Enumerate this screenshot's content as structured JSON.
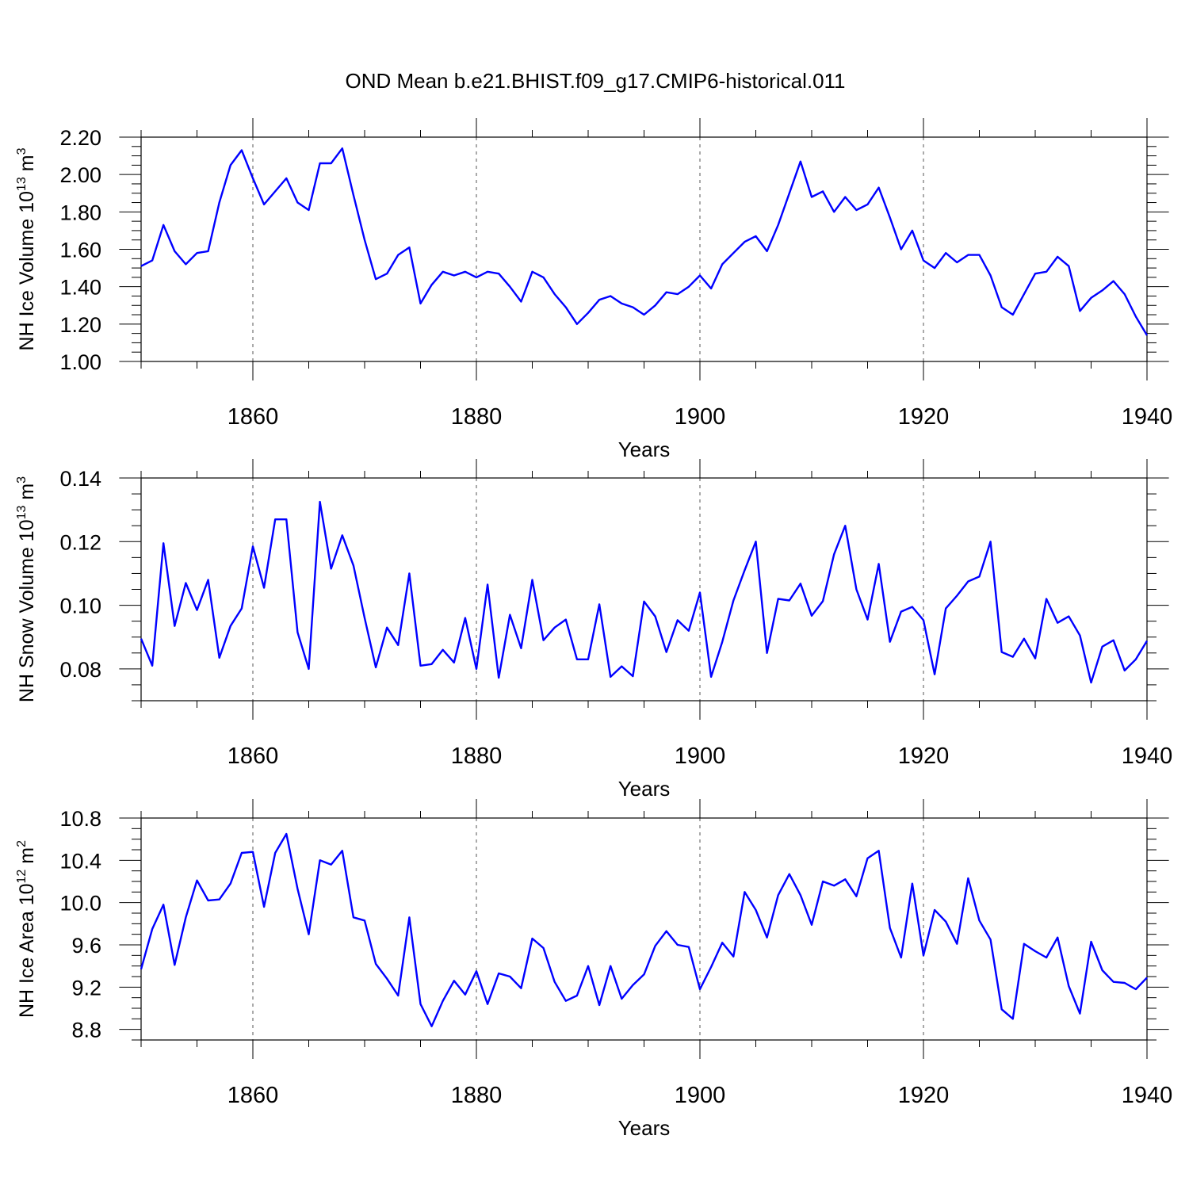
{
  "figure_title": "OND Mean b.e21.BHIST.f09_g17.CMIP6-historical.011",
  "colors": {
    "series": "#0000ff",
    "axes": "#000000",
    "grid": "#555555"
  },
  "chart_data": [
    {
      "type": "line",
      "title": "OND Mean b.e21.BHIST.f09_g17.CMIP6-historical.011",
      "xlabel": "Years",
      "ylabel": {
        "main": "NH Ice Volume 10",
        "exp": "13",
        "unit": " m",
        "unit_exp": "3"
      },
      "xlim": [
        1850,
        1940
      ],
      "ylim": [
        1.0,
        2.2
      ],
      "yticks": [
        1.0,
        1.2,
        1.4,
        1.6,
        1.8,
        2.0,
        2.2
      ],
      "ytick_labels": [
        "1.00",
        "1.20",
        "1.40",
        "1.60",
        "1.80",
        "2.00",
        "2.20"
      ],
      "yminor_step": 0.05,
      "xticks": [
        1860,
        1880,
        1900,
        1920,
        1940
      ],
      "xtick_labels": [
        "1860",
        "1880",
        "1900",
        "1920",
        "1940"
      ],
      "xminor_step": 5,
      "grid_x": [
        1860,
        1880,
        1900,
        1920
      ],
      "x_start": 1850,
      "values": [
        1.51,
        1.54,
        1.73,
        1.59,
        1.52,
        1.58,
        1.59,
        1.85,
        2.05,
        2.13,
        1.98,
        1.84,
        1.91,
        1.98,
        1.85,
        1.81,
        2.06,
        2.06,
        2.14,
        1.89,
        1.65,
        1.44,
        1.47,
        1.57,
        1.61,
        1.31,
        1.41,
        1.48,
        1.46,
        1.48,
        1.45,
        1.48,
        1.47,
        1.4,
        1.32,
        1.48,
        1.45,
        1.36,
        1.29,
        1.2,
        1.26,
        1.33,
        1.35,
        1.31,
        1.29,
        1.25,
        1.3,
        1.37,
        1.36,
        1.4,
        1.46,
        1.39,
        1.52,
        1.58,
        1.64,
        1.67,
        1.59,
        1.73,
        1.9,
        2.07,
        1.88,
        1.91,
        1.8,
        1.88,
        1.81,
        1.84,
        1.93,
        1.77,
        1.6,
        1.7,
        1.54,
        1.5,
        1.58,
        1.53,
        1.57,
        1.57,
        1.46,
        1.29,
        1.25,
        1.36,
        1.47,
        1.48,
        1.56,
        1.51,
        1.27,
        1.34,
        1.38,
        1.43,
        1.36,
        1.24,
        1.14
      ]
    },
    {
      "type": "line",
      "xlabel": "Years",
      "ylabel": {
        "main": "NH Snow Volume 10",
        "exp": "13",
        "unit": " m",
        "unit_exp": "3"
      },
      "xlim": [
        1850,
        1940
      ],
      "ylim": [
        0.07,
        0.14
      ],
      "yticks": [
        0.08,
        0.1,
        0.12,
        0.14
      ],
      "ytick_labels": [
        "0.08",
        "0.10",
        "0.12",
        "0.14"
      ],
      "yminor_step": 0.005,
      "xticks": [
        1860,
        1880,
        1900,
        1920,
        1940
      ],
      "xtick_labels": [
        "1860",
        "1880",
        "1900",
        "1920",
        "1940"
      ],
      "xminor_step": 5,
      "grid_x": [
        1860,
        1880,
        1900,
        1920
      ],
      "x_start": 1850,
      "values": [
        0.0895,
        0.081,
        0.1195,
        0.0935,
        0.107,
        0.0985,
        0.108,
        0.0835,
        0.0935,
        0.099,
        0.1185,
        0.1055,
        0.127,
        0.127,
        0.0915,
        0.08,
        0.1325,
        0.1115,
        0.122,
        0.1125,
        0.096,
        0.0805,
        0.093,
        0.0875,
        0.11,
        0.081,
        0.0815,
        0.086,
        0.082,
        0.096,
        0.08,
        0.1065,
        0.0772,
        0.097,
        0.0865,
        0.108,
        0.089,
        0.093,
        0.0955,
        0.083,
        0.083,
        0.1003,
        0.0775,
        0.0808,
        0.0777,
        0.1012,
        0.0965,
        0.0853,
        0.0953,
        0.092,
        0.104,
        0.0775,
        0.0885,
        0.1015,
        0.111,
        0.12,
        0.085,
        0.102,
        0.1015,
        0.1068,
        0.0967,
        0.1013,
        0.116,
        0.125,
        0.105,
        0.0955,
        0.113,
        0.0885,
        0.098,
        0.0995,
        0.0953,
        0.0783,
        0.099,
        0.103,
        0.1075,
        0.109,
        0.12,
        0.0853,
        0.0838,
        0.0895,
        0.0833,
        0.102,
        0.0945,
        0.0965,
        0.0905,
        0.0757,
        0.087,
        0.089,
        0.0795,
        0.083,
        0.0888
      ]
    },
    {
      "type": "line",
      "xlabel": "Years",
      "ylabel": {
        "main": "NH Ice Area 10",
        "exp": "12",
        "unit": " m",
        "unit_exp": "2"
      },
      "xlim": [
        1850,
        1940
      ],
      "ylim": [
        8.7,
        10.8
      ],
      "yticks": [
        8.8,
        9.2,
        9.6,
        10.0,
        10.4,
        10.8
      ],
      "ytick_labels": [
        "8.8",
        "9.2",
        "9.6",
        "10.0",
        "10.4",
        "10.8"
      ],
      "yminor_step": 0.1,
      "xticks": [
        1860,
        1880,
        1900,
        1920,
        1940
      ],
      "xtick_labels": [
        "1860",
        "1880",
        "1900",
        "1920",
        "1940"
      ],
      "xminor_step": 5,
      "grid_x": [
        1860,
        1880,
        1900,
        1920
      ],
      "x_start": 1850,
      "values": [
        9.37,
        9.75,
        9.98,
        9.41,
        9.86,
        10.21,
        10.02,
        10.03,
        10.18,
        10.47,
        10.48,
        9.96,
        10.47,
        10.65,
        10.13,
        9.7,
        10.4,
        10.36,
        10.49,
        9.86,
        9.83,
        9.42,
        9.28,
        9.12,
        9.86,
        9.04,
        8.83,
        9.07,
        9.26,
        9.13,
        9.35,
        9.04,
        9.33,
        9.3,
        9.19,
        9.66,
        9.57,
        9.25,
        9.07,
        9.12,
        9.4,
        9.03,
        9.4,
        9.09,
        9.22,
        9.32,
        9.59,
        9.73,
        9.6,
        9.58,
        9.18,
        9.39,
        9.62,
        9.49,
        10.1,
        9.93,
        9.67,
        10.07,
        10.27,
        10.07,
        9.79,
        10.2,
        10.16,
        10.22,
        10.06,
        10.42,
        10.49,
        9.76,
        9.48,
        10.18,
        9.5,
        9.93,
        9.82,
        9.61,
        10.23,
        9.83,
        9.65,
        8.99,
        8.9,
        9.61,
        9.54,
        9.48,
        9.67,
        9.21,
        8.95,
        9.63,
        9.36,
        9.25,
        9.24,
        9.18,
        9.29
      ]
    }
  ]
}
